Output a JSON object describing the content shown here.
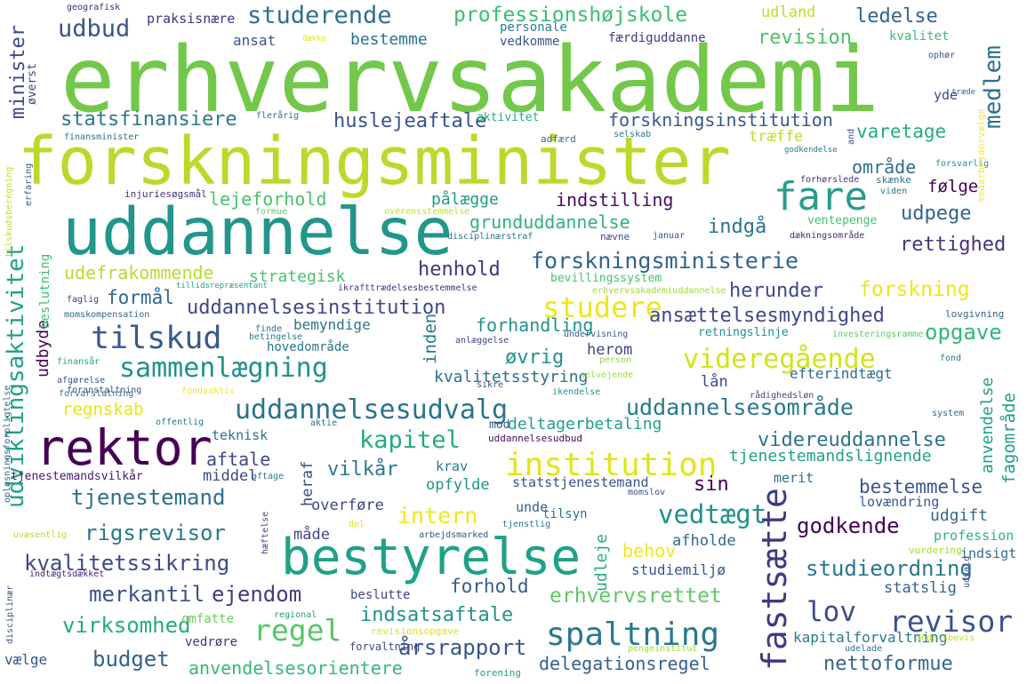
{
  "palette": [
    "#440154",
    "#46327e",
    "#365c8d",
    "#277f8e",
    "#1fa187",
    "#4ac16d",
    "#a0da39",
    "#fde725"
  ],
  "words": [
    {
      "text": "erhvervsakademi",
      "color": "#73c84b"
    },
    {
      "text": "forskningsminister",
      "color": "#bfd72b"
    },
    {
      "text": "uddannelse",
      "color": "#22968b"
    },
    {
      "text": "rektor",
      "color": "#440154"
    },
    {
      "text": "bestyrelse",
      "color": "#1fa187"
    },
    {
      "text": "institution",
      "color": "#e3e418"
    },
    {
      "text": "fastsætte",
      "color": "#3e3a80"
    },
    {
      "text": "uddannelsesudvalg",
      "color": "#2c728e"
    },
    {
      "text": "tilskud",
      "color": "#37598c"
    },
    {
      "text": "sammenlægning",
      "color": "#21918c"
    },
    {
      "text": "videregående",
      "color": "#d2e21b"
    },
    {
      "text": "studere",
      "color": "#f0e51c"
    },
    {
      "text": "fare",
      "color": "#2a9c89"
    },
    {
      "text": "spaltning",
      "color": "#29788e"
    },
    {
      "text": "revisor",
      "color": "#3b528b"
    },
    {
      "text": "regel",
      "color": "#56c667"
    },
    {
      "text": "lov",
      "color": "#3e4a89"
    },
    {
      "text": "forskningsministerie",
      "color": "#33638d"
    },
    {
      "text": "uddannelsesområde",
      "color": "#2a788e"
    },
    {
      "text": "kapitel",
      "color": "#23a983"
    },
    {
      "text": "professionshøjskole",
      "color": "#3dbc74"
    },
    {
      "text": "studerende",
      "color": "#2d708e"
    },
    {
      "text": "udbud",
      "color": "#3a548c"
    },
    {
      "text": "forskningsinstitution",
      "color": "#38588c"
    },
    {
      "text": "statsfinansiere",
      "color": "#2a788e"
    },
    {
      "text": "huslejeaftale",
      "color": "#3b528b"
    },
    {
      "text": "uddannelsesinstitution",
      "color": "#404688"
    },
    {
      "text": "ansættelsesmyndighed",
      "color": "#404688"
    },
    {
      "text": "tjenestemand",
      "color": "#2e6e8e"
    },
    {
      "text": "rigsrevisor",
      "color": "#29798e"
    },
    {
      "text": "kvalitetssikring",
      "color": "#3f4889"
    },
    {
      "text": "merkantil",
      "color": "#3b528b"
    },
    {
      "text": "ejendom",
      "color": "#443a83"
    },
    {
      "text": "virksomhed",
      "color": "#25ab82"
    },
    {
      "text": "budget",
      "color": "#33638d"
    },
    {
      "text": "anvendelsesorientere",
      "color": "#35b779"
    },
    {
      "text": "indsatsaftale",
      "color": "#21918c"
    },
    {
      "text": "årsrapport",
      "color": "#39558c"
    },
    {
      "text": "delegationsregel",
      "color": "#35608d"
    },
    {
      "text": "nettoformue",
      "color": "#31688e"
    },
    {
      "text": "erhvervsrettet",
      "color": "#5ec962"
    },
    {
      "text": "studieordning",
      "color": "#2a788e"
    },
    {
      "text": "godkende",
      "color": "#440154"
    },
    {
      "text": "vedtægt",
      "color": "#21908d"
    },
    {
      "text": "videreuddannelse",
      "color": "#2c728e"
    },
    {
      "text": "tjenestemandslignende",
      "color": "#1fa088"
    },
    {
      "text": "bestemmelse",
      "color": "#3b528b"
    },
    {
      "text": "intern",
      "color": "#f1e51d"
    },
    {
      "text": "opgave",
      "color": "#32b67a"
    },
    {
      "text": "forskning",
      "color": "#f0e51c"
    },
    {
      "text": "herunder",
      "color": "#3f4889"
    },
    {
      "text": "rettighed",
      "color": "#46327e"
    },
    {
      "text": "udpege",
      "color": "#33638d"
    },
    {
      "text": "indstilling",
      "color": "#460b5e"
    },
    {
      "text": "grunduddannelse",
      "color": "#2db27d"
    },
    {
      "text": "indgå",
      "color": "#2c728e"
    },
    {
      "text": "henhold",
      "color": "#46327e"
    },
    {
      "text": "udefrakommende",
      "color": "#b5de2b"
    },
    {
      "text": "strategisk",
      "color": "#4ac16d"
    },
    {
      "text": "formål",
      "color": "#32648e"
    },
    {
      "text": "lejeforhold",
      "color": "#4ac16d"
    },
    {
      "text": "pålægge",
      "color": "#1f9a8a"
    },
    {
      "text": "område",
      "color": "#2e6e8e"
    },
    {
      "text": "følge",
      "color": "#440154"
    },
    {
      "text": "varetage",
      "color": "#25ab82"
    },
    {
      "text": "medlem",
      "color": "#2d718e"
    },
    {
      "text": "ledelse",
      "color": "#33638d"
    },
    {
      "text": "revision",
      "color": "#4ac16d"
    },
    {
      "text": "kvalitet",
      "color": "#3dbc74"
    },
    {
      "text": "udland",
      "color": "#bddf26"
    },
    {
      "text": "bestemme",
      "color": "#2c728e"
    },
    {
      "text": "ansat",
      "color": "#3b528b"
    },
    {
      "text": "personale",
      "color": "#277f8e"
    },
    {
      "text": "vedkomme",
      "color": "#3b528b"
    },
    {
      "text": "færdiguddanne",
      "color": "#443983"
    },
    {
      "text": "praksisnære",
      "color": "#46327e"
    },
    {
      "text": "geografisk",
      "color": "#482878"
    },
    {
      "text": "minister",
      "color": "#3e4989"
    },
    {
      "text": "øverst",
      "color": "#404688"
    },
    {
      "text": "udviklingsaktivitet",
      "color": "#1fa187"
    },
    {
      "text": "regnskab",
      "color": "#e5e419"
    },
    {
      "text": "aftale",
      "color": "#404688"
    },
    {
      "text": "vilkår",
      "color": "#2a788e"
    },
    {
      "text": "middel",
      "color": "#3f4889"
    },
    {
      "text": "teknisk",
      "color": "#2c728e"
    },
    {
      "text": "overføre",
      "color": "#404688"
    },
    {
      "text": "måde",
      "color": "#3e4989"
    },
    {
      "text": "herom",
      "color": "#414487"
    },
    {
      "text": "øvrig",
      "color": "#21918c"
    },
    {
      "text": "kvalitetsstyring",
      "color": "#2d708e"
    },
    {
      "text": "lån",
      "color": "#3e4989"
    },
    {
      "text": "efterindtægt",
      "color": "#2f6c8e"
    },
    {
      "text": "forhandling",
      "color": "#21918c"
    },
    {
      "text": "bemyndige",
      "color": "#2c728e"
    },
    {
      "text": "hovedområde",
      "color": "#2a768e"
    },
    {
      "text": "inden",
      "color": "#2a788e"
    },
    {
      "text": "udbyde",
      "color": "#440154"
    },
    {
      "text": "heraf",
      "color": "#3f4889"
    },
    {
      "text": "mod",
      "color": "#3b528b"
    },
    {
      "text": "deltagerbetaling",
      "color": "#1fa187"
    },
    {
      "text": "krav",
      "color": "#2a788e"
    },
    {
      "text": "opfylde",
      "color": "#21918c"
    },
    {
      "text": "statstjenestemand",
      "color": "#39558c"
    },
    {
      "text": "sin",
      "color": "#440154"
    },
    {
      "text": "unde",
      "color": "#35608d"
    },
    {
      "text": "tilsyn",
      "color": "#2a788e"
    },
    {
      "text": "udleje",
      "color": "#25ab82"
    },
    {
      "text": "afholde",
      "color": "#31688e"
    },
    {
      "text": "forhold",
      "color": "#38598c"
    },
    {
      "text": "studiemiljø",
      "color": "#3a548c"
    },
    {
      "text": "behov",
      "color": "#f1e51d"
    },
    {
      "text": "udgift",
      "color": "#2f6c8e"
    },
    {
      "text": "lovændring",
      "color": "#38588c"
    },
    {
      "text": "merit",
      "color": "#2d708e"
    },
    {
      "text": "profession",
      "color": "#2db27d"
    },
    {
      "text": "indsigt",
      "color": "#2f6c8e"
    },
    {
      "text": "statslig",
      "color": "#33638d"
    },
    {
      "text": "anvendelse",
      "color": "#1fa187"
    },
    {
      "text": "fagområde",
      "color": "#1f9e89"
    },
    {
      "text": "vurdering",
      "color": "#a0da39"
    },
    {
      "text": "kapitalforvaltning",
      "color": "#2a788e"
    },
    {
      "text": "vælge",
      "color": "#3b528b"
    },
    {
      "text": "vedrøre",
      "color": "#46327e"
    },
    {
      "text": "omfatte",
      "color": "#6ccd5a"
    },
    {
      "text": "beslutte",
      "color": "#414487"
    },
    {
      "text": "forvaltning",
      "color": "#3e4a89"
    },
    {
      "text": "forening",
      "color": "#1fa187"
    },
    {
      "text": "revisionsopgave",
      "color": "#dde318"
    },
    {
      "text": "hæftelse",
      "color": "#414487"
    },
    {
      "text": "arbejdsmarked",
      "color": "#3b528b"
    },
    {
      "text": "tjenstlig",
      "color": "#2c728e"
    },
    {
      "text": "del",
      "color": "#dde318"
    },
    {
      "text": "uvæsentlig",
      "color": "#b5de2b"
    },
    {
      "text": "indtægtsdækket",
      "color": "#482475"
    },
    {
      "text": "disciplinær",
      "color": "#3b528b"
    },
    {
      "text": "regional",
      "color": "#1fa187"
    },
    {
      "text": "pengeinstitut",
      "color": "#a0da39"
    },
    {
      "text": "udelade",
      "color": "#2c728e"
    },
    {
      "text": "andelsbevis",
      "color": "#c2df23"
    },
    {
      "text": "udvalg",
      "color": "#3e4989"
    },
    {
      "text": "momslov",
      "color": "#3b528b"
    },
    {
      "text": "tjenestemandsvilkår",
      "color": "#481a6c"
    },
    {
      "text": "aftage",
      "color": "#2c728e"
    },
    {
      "text": "opløsningsforpligtelse",
      "color": "#33638d"
    },
    {
      "text": "offentlig",
      "color": "#2a788e"
    },
    {
      "text": "forvarslatning",
      "color": "#2a788e"
    },
    {
      "text": "fondsaktiv",
      "color": "#f1e51d"
    },
    {
      "text": "sikre",
      "color": "#3b528b"
    },
    {
      "text": "aktie",
      "color": "#2c728e"
    },
    {
      "text": "uddannelsesudbud",
      "color": "#460b5e"
    },
    {
      "text": "ikendelse",
      "color": "#20928c"
    },
    {
      "text": "rådighedsløn",
      "color": "#3e4989"
    },
    {
      "text": "system",
      "color": "#31688e"
    },
    {
      "text": "fond",
      "color": "#2a788e"
    },
    {
      "text": "person",
      "color": "#95d840"
    },
    {
      "text": "retningslinje",
      "color": "#21918c"
    },
    {
      "text": "undervisning",
      "color": "#3b528b"
    },
    {
      "text": "selvejende",
      "color": "#a0da39"
    },
    {
      "text": "investeringsramme",
      "color": "#5ec962"
    },
    {
      "text": "lovgivning",
      "color": "#33638d"
    },
    {
      "text": "anlæggelse",
      "color": "#3e4989"
    },
    {
      "text": "finde",
      "color": "#31688e"
    },
    {
      "text": "betingelse",
      "color": "#2a788e"
    },
    {
      "text": "finansår",
      "color": "#1fa187"
    },
    {
      "text": "afgørelse",
      "color": "#3b528b"
    },
    {
      "text": "foranstaltning",
      "color": "#3e4989"
    },
    {
      "text": "momskompensation",
      "color": "#31688e"
    },
    {
      "text": "faglig",
      "color": "#46327e"
    },
    {
      "text": "tillidsrepræsentant",
      "color": "#1fa187"
    },
    {
      "text": "ikrafttrædelsesbestemmelse",
      "color": "#46327e"
    },
    {
      "text": "erhvervsakademiuddannelse",
      "color": "#a0da39"
    },
    {
      "text": "bevillingssystem",
      "color": "#4ac16d"
    },
    {
      "text": "nævne",
      "color": "#414487"
    },
    {
      "text": "disciplinærstraf",
      "color": "#2c728e"
    },
    {
      "text": "januar",
      "color": "#3b528b"
    },
    {
      "text": "dækningsområde",
      "color": "#482878"
    },
    {
      "text": "ventepenge",
      "color": "#4ac16d"
    },
    {
      "text": "overensstemmelse",
      "color": "#c2df23"
    },
    {
      "text": "formue",
      "color": "#5ec962"
    },
    {
      "text": "injuriesøgsmål",
      "color": "#46327e"
    },
    {
      "text": "beslutning",
      "color": "#3dbc74"
    },
    {
      "text": "tilskudsberegning",
      "color": "#c2df23"
    },
    {
      "text": "erfaring",
      "color": "#3b528b"
    },
    {
      "text": "finansminister",
      "color": "#2c728e"
    },
    {
      "text": "flerårig",
      "color": "#2c728e"
    },
    {
      "text": "aktivitet",
      "color": "#25ab82"
    },
    {
      "text": "adfærd",
      "color": "#2c728e"
    },
    {
      "text": "selskab",
      "color": "#2a788e"
    },
    {
      "text": "træffe",
      "color": "#bddf26"
    },
    {
      "text": "godkendelse",
      "color": "#2a788e"
    },
    {
      "text": "and",
      "color": "#3b528b"
    },
    {
      "text": "forhørslede",
      "color": "#46327e"
    },
    {
      "text": "forsvarlig",
      "color": "#21918c"
    },
    {
      "text": "skænke",
      "color": "#2c728e"
    },
    {
      "text": "viden",
      "color": "#2a788e"
    },
    {
      "text": "medarbejdervælge",
      "color": "#fde725"
    },
    {
      "text": "yde",
      "color": "#414487"
    },
    {
      "text": "ophør",
      "color": "#3b528b"
    },
    {
      "text": "træde",
      "color": "#2c728e"
    },
    {
      "text": "dække",
      "color": "#e3e418"
    }
  ]
}
